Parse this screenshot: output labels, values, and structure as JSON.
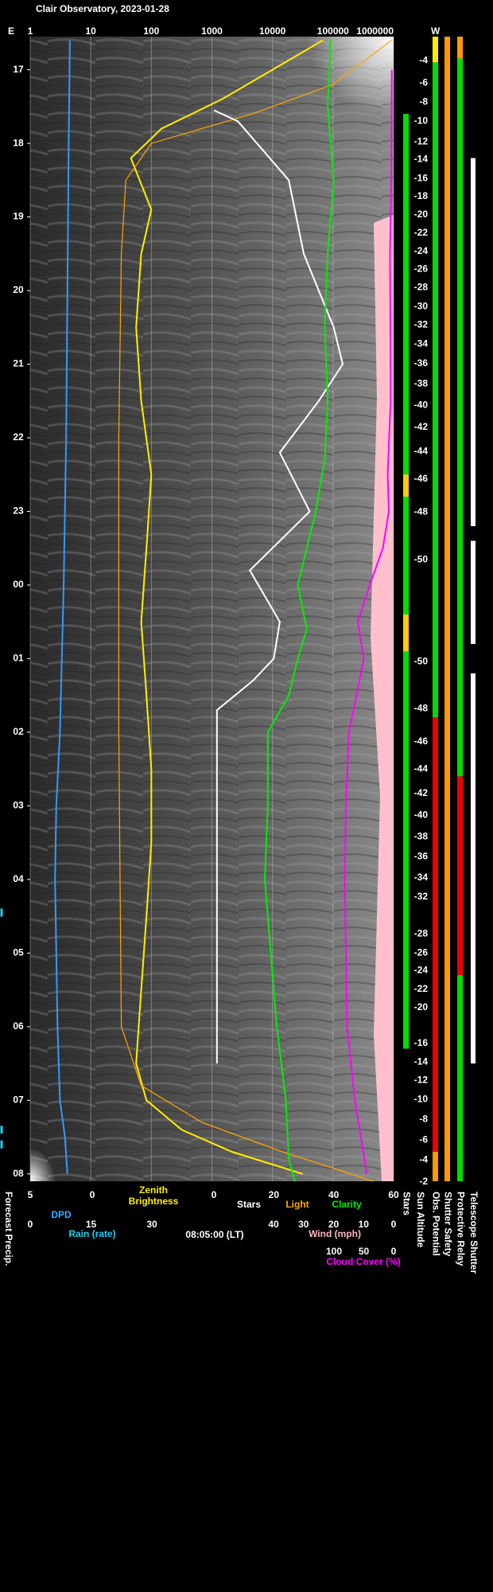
{
  "chart_data": {
    "type": "line",
    "title": "Clair Observatory, 2023-01-28",
    "time_axis": {
      "lim": [
        0.55,
        16.1
      ],
      "label": "08:05:00 (LT)",
      "ticks": [
        {
          "value": 1,
          "label": "17"
        },
        {
          "value": 2,
          "label": "18"
        },
        {
          "value": 3,
          "label": "19"
        },
        {
          "value": 4,
          "label": "20"
        },
        {
          "value": 5,
          "label": "21"
        },
        {
          "value": 6,
          "label": "22"
        },
        {
          "value": 7,
          "label": "23"
        },
        {
          "value": 8,
          "label": "00"
        },
        {
          "value": 9,
          "label": "01"
        },
        {
          "value": 10,
          "label": "02"
        },
        {
          "value": 11,
          "label": "03"
        },
        {
          "value": 12,
          "label": "04"
        },
        {
          "value": 13,
          "label": "05"
        },
        {
          "value": 14,
          "label": "06"
        },
        {
          "value": 15,
          "label": "07"
        },
        {
          "value": 16,
          "label": "08"
        }
      ]
    },
    "top_axis": {
      "scale": "log",
      "lim": [
        1,
        1000000
      ],
      "ticks": [
        1,
        10,
        100,
        1000,
        10000,
        100000,
        1000000
      ],
      "left_label": "E",
      "right_label": "W",
      "grid": true
    },
    "bottom_axes": {
      "dpd": {
        "label": "DPD",
        "color": "#33aaff",
        "lim": [
          5,
          0
        ],
        "ticks": [
          5,
          0
        ]
      },
      "rain": {
        "label": "Rain (rate)",
        "color": "#22ccee",
        "lim": [
          0,
          30
        ],
        "ticks": [
          0,
          15,
          30
        ]
      },
      "slc": {
        "color": "#ffffff",
        "lim": [
          0,
          60
        ],
        "ticks": [
          0,
          20,
          40,
          60
        ]
      },
      "wind": {
        "label": "Wind (mph)",
        "color": "#ffb6c1",
        "lim": [
          40,
          0
        ],
        "ticks": [
          40,
          30,
          20,
          10,
          0
        ]
      },
      "cloud": {
        "label": "Cloud Cover (%)",
        "color": "#ff00ff",
        "lim": [
          100,
          0
        ],
        "ticks": [
          100,
          50,
          0
        ]
      }
    },
    "series": [
      {
        "name": "Zenith Brightness",
        "color": "#ffee00",
        "axis": "top",
        "t": [
          0.6,
          1.0,
          1.4,
          1.8,
          2.2,
          2.9,
          3.5,
          4.5,
          5.5,
          6.5,
          7.5,
          8.5,
          9.5,
          10.5,
          11.5,
          12.5,
          13.5,
          14.5,
          15.0,
          15.4,
          15.7,
          16.0
        ],
        "values": [
          68000,
          10000,
          1470,
          147,
          46,
          100,
          68,
          56,
          68,
          100,
          83,
          68,
          83,
          100,
          100,
          83,
          68,
          56,
          83,
          316,
          2150,
          31600
        ]
      },
      {
        "name": "Light",
        "color": "#ffa500",
        "axis": "top",
        "t": [
          0.6,
          1.2,
          1.6,
          2.0,
          2.5,
          3.5,
          6.0,
          10.0,
          14.0,
          14.8,
          15.3,
          15.7,
          16.1
        ],
        "values": [
          926000,
          100000,
          4640,
          100,
          38,
          32,
          29,
          29,
          32,
          68,
          681,
          14700,
          464000
        ]
      },
      {
        "name": "Stars",
        "color": "#ffffff",
        "axis": "slc",
        "t": [
          1.55,
          1.7,
          2.5,
          3.5,
          4.5,
          5.0,
          5.5,
          6.2,
          7.0,
          7.8,
          8.5,
          9.0,
          9.3,
          9.7,
          10.2,
          11.5,
          12.5,
          13.0,
          14.0,
          14.5
        ],
        "values": [
          0,
          8,
          25,
          30,
          40,
          43,
          35,
          22,
          32,
          12,
          22,
          20,
          13,
          1,
          1,
          1,
          1,
          1,
          1,
          1
        ]
      },
      {
        "name": "Clarity",
        "color": "#00ee00",
        "axis": "slc",
        "t": [
          0.6,
          1.5,
          2.5,
          3.5,
          4.5,
          5.5,
          6.3,
          7.0,
          7.5,
          8.0,
          8.6,
          9.0,
          9.5,
          10.0,
          11.0,
          12.0,
          13.0,
          14.0,
          15.0,
          15.8,
          16.1
        ],
        "values": [
          39,
          38,
          40,
          38,
          37,
          38,
          37,
          34,
          31,
          28,
          31,
          28,
          25,
          18,
          18,
          17,
          19,
          21,
          24,
          25,
          27
        ]
      },
      {
        "color": "#3399ff",
        "axis": "dpd",
        "t": [
          0.6,
          2,
          4,
          6,
          8,
          10,
          11,
          12,
          13,
          14,
          15,
          15.5,
          16.0
        ],
        "values": [
          1.8,
          1.9,
          2.0,
          2.1,
          2.3,
          2.6,
          2.9,
          3.0,
          2.9,
          2.8,
          2.6,
          2.2,
          2.0
        ]
      },
      {
        "color": "#ff00ff",
        "axis": "cloud",
        "t": [
          1.0,
          2.5,
          3.5,
          5.5,
          6.5,
          7.0,
          7.5,
          8.0,
          8.5,
          9.0,
          9.5,
          10.0,
          11.0,
          12.0,
          13.0,
          14.0,
          15.0,
          15.5,
          16.0
        ],
        "values": [
          3,
          4,
          6,
          5,
          10,
          8,
          18,
          40,
          60,
          50,
          62,
          75,
          80,
          82,
          80,
          78,
          65,
          55,
          45
        ]
      }
    ],
    "sun_altitude": {
      "label": "Sun Altitude",
      "ticks": [
        {
          "value": 0.88,
          "label": "-4"
        },
        {
          "value": 1.18,
          "label": "-6"
        },
        {
          "value": 1.44,
          "label": "-8"
        },
        {
          "value": 1.7,
          "label": "-10"
        },
        {
          "value": 1.98,
          "label": "-12"
        },
        {
          "value": 2.22,
          "label": "-14"
        },
        {
          "value": 2.48,
          "label": "-16"
        },
        {
          "value": 2.72,
          "label": "-18"
        },
        {
          "value": 2.97,
          "label": "-20"
        },
        {
          "value": 3.22,
          "label": "-22"
        },
        {
          "value": 3.47,
          "label": "-24"
        },
        {
          "value": 3.71,
          "label": "-26"
        },
        {
          "value": 3.96,
          "label": "-28"
        },
        {
          "value": 4.22,
          "label": "-30"
        },
        {
          "value": 4.47,
          "label": "-32"
        },
        {
          "value": 4.73,
          "label": "-34"
        },
        {
          "value": 4.99,
          "label": "-36"
        },
        {
          "value": 5.27,
          "label": "-38"
        },
        {
          "value": 5.56,
          "label": "-40"
        },
        {
          "value": 5.86,
          "label": "-42"
        },
        {
          "value": 6.19,
          "label": "-44"
        },
        {
          "value": 6.56,
          "label": "-46"
        },
        {
          "value": 7.01,
          "label": "-48"
        },
        {
          "value": 7.66,
          "label": "-50"
        },
        {
          "value": 9.04,
          "label": "-50"
        },
        {
          "value": 9.68,
          "label": "-48"
        },
        {
          "value": 10.13,
          "label": "-46"
        },
        {
          "value": 10.5,
          "label": "-44"
        },
        {
          "value": 10.83,
          "label": "-42"
        },
        {
          "value": 11.13,
          "label": "-40"
        },
        {
          "value": 11.42,
          "label": "-38"
        },
        {
          "value": 11.69,
          "label": "-36"
        },
        {
          "value": 11.98,
          "label": "-34"
        },
        {
          "value": 12.24,
          "label": "-32"
        },
        {
          "value": 12.74,
          "label": "-28"
        },
        {
          "value": 13.0,
          "label": "-26"
        },
        {
          "value": 13.24,
          "label": "-24"
        },
        {
          "value": 13.49,
          "label": "-22"
        },
        {
          "value": 13.74,
          "label": "-20"
        },
        {
          "value": 14.23,
          "label": "-16"
        },
        {
          "value": 14.48,
          "label": "-14"
        },
        {
          "value": 14.73,
          "label": "-12"
        },
        {
          "value": 14.99,
          "label": "-10"
        },
        {
          "value": 15.26,
          "label": "-8"
        },
        {
          "value": 15.54,
          "label": "-6"
        },
        {
          "value": 15.81,
          "label": "-4"
        },
        {
          "value": 16.11,
          "label": "-2"
        }
      ]
    },
    "status_columns": [
      {
        "label": "Stars",
        "segments": [
          {
            "start": 1.6,
            "end": 14.3,
            "color": "#00dd00"
          },
          {
            "start": 6.5,
            "end": 6.8,
            "color": "#ffcc00"
          },
          {
            "start": 8.4,
            "end": 8.9,
            "color": "#ffcc00"
          }
        ]
      },
      {
        "label": "Obs. Potential",
        "segments": [
          {
            "start": 0.55,
            "end": 0.9,
            "color": "#ffee00"
          },
          {
            "start": 0.9,
            "end": 9.8,
            "color": "#00dd00"
          },
          {
            "start": 9.8,
            "end": 15.7,
            "color": "#ee0000"
          },
          {
            "start": 15.7,
            "end": 16.1,
            "color": "#ff9900"
          }
        ]
      },
      {
        "label": "Shutter Safety",
        "segments": [
          {
            "start": 0.55,
            "end": 16.1,
            "color": "#ff9900"
          }
        ]
      },
      {
        "label": "Protective Relay",
        "segments": [
          {
            "start": 0.55,
            "end": 0.85,
            "color": "#ff9900"
          },
          {
            "start": 0.85,
            "end": 10.6,
            "color": "#00dd00"
          },
          {
            "start": 10.6,
            "end": 13.3,
            "color": "#ee0000"
          },
          {
            "start": 13.3,
            "end": 16.1,
            "color": "#00dd00"
          }
        ]
      },
      {
        "label": "Telescope Shutter",
        "segments": [
          {
            "start": 2.2,
            "end": 7.2,
            "color": "#ffffff"
          },
          {
            "start": 7.4,
            "end": 8.8,
            "color": "#ffffff"
          },
          {
            "start": 9.2,
            "end": 14.5,
            "color": "#ffffff"
          }
        ]
      }
    ],
    "forecast_precip": {
      "label": "Forecast Precip.",
      "color": "#22ccee",
      "t": [
        12.45,
        15.4,
        15.6
      ]
    }
  }
}
